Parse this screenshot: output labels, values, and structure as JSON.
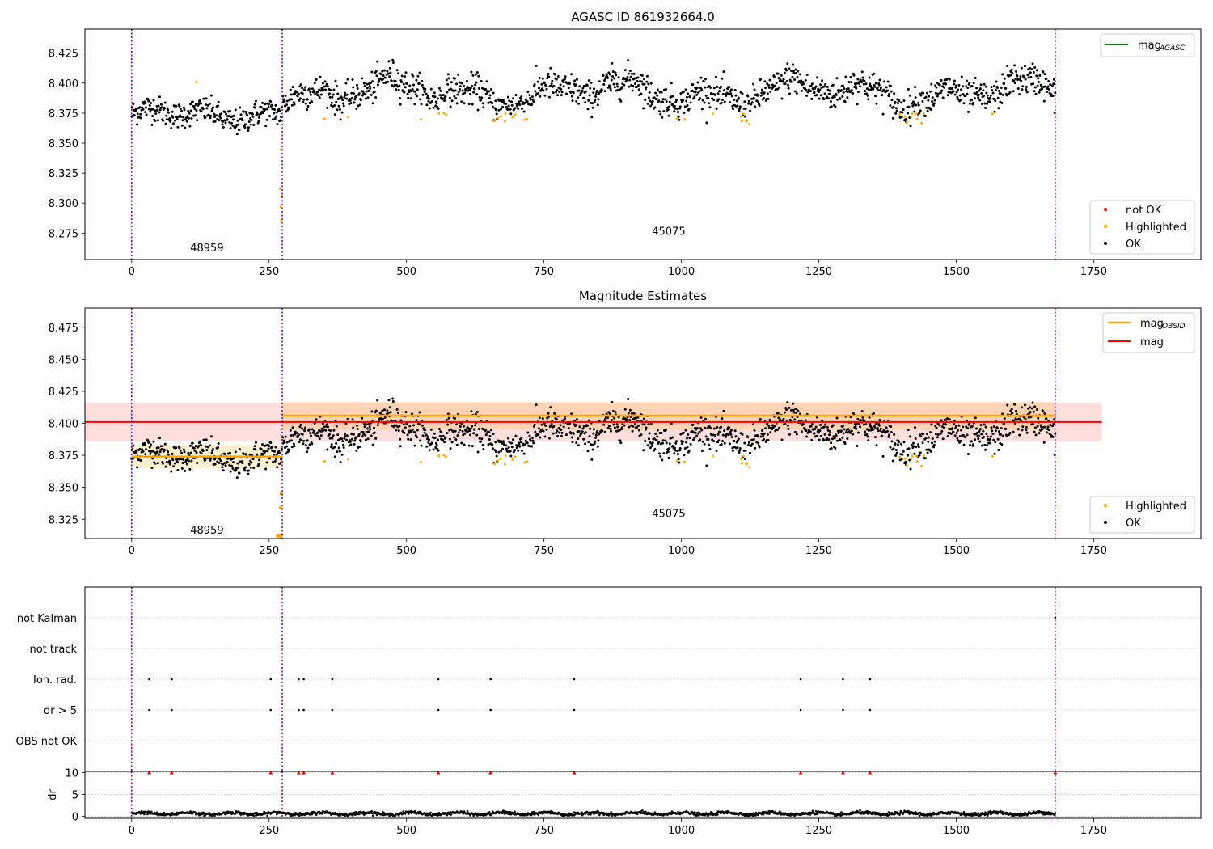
{
  "colors": {
    "ok": "#000000",
    "highlighted": "#ffa500",
    "not_ok": "#ff0000",
    "mag_agasc": "#008000",
    "mag_obsid": "#ffa500",
    "mag": "#ff0000",
    "obs_boundary": "#6a0080"
  },
  "chart_data": [
    {
      "type": "scatter",
      "title": "AGASC ID 861932664.0",
      "xlim": [
        -85,
        1945
      ],
      "ylim": [
        8.253,
        8.445
      ],
      "xticks": [
        0,
        250,
        500,
        750,
        1000,
        1250,
        1500,
        1750
      ],
      "yticks": [
        8.275,
        8.3,
        8.325,
        8.35,
        8.375,
        8.4,
        8.425
      ],
      "obs_boundaries": [
        0,
        274,
        1680
      ],
      "obsids": [
        {
          "label": "48959",
          "x": 137,
          "y": 8.263
        },
        {
          "label": "45075",
          "x": 977,
          "y": 8.277
        }
      ],
      "segments": [
        {
          "x_start": 0,
          "x_end": 273,
          "center": 8.374,
          "spread": 0.008,
          "trend": 0.003
        },
        {
          "x_start": 275,
          "x_end": 1680,
          "center": 8.392,
          "spread": 0.01,
          "trend": 0.0
        }
      ],
      "highlighted_dips": [
        {
          "x": 272,
          "y": 8.285
        },
        {
          "x": 271,
          "y": 8.297
        },
        {
          "x": 273,
          "y": 8.306
        },
        {
          "x": 270,
          "y": 8.312
        },
        {
          "x": 272,
          "y": 8.345
        },
        {
          "x": 118,
          "y": 8.401
        }
      ],
      "legends": [
        {
          "position": "top-right",
          "entries": [
            {
              "label": "mag",
              "sub": "AGASC",
              "kind": "line",
              "color": "#008000"
            }
          ]
        },
        {
          "position": "bottom-right",
          "entries": [
            {
              "label": "not OK",
              "kind": "dot",
              "color": "#ff0000"
            },
            {
              "label": "Highlighted",
              "kind": "dot",
              "color": "#ffa500"
            },
            {
              "label": "OK",
              "kind": "dot",
              "color": "#000000"
            }
          ]
        }
      ]
    },
    {
      "type": "scatter",
      "title": "Magnitude Estimates",
      "xlim": [
        -85,
        1945
      ],
      "ylim": [
        8.31,
        8.49
      ],
      "xticks": [
        0,
        250,
        500,
        750,
        1000,
        1250,
        1500,
        1750
      ],
      "yticks": [
        8.325,
        8.35,
        8.375,
        8.4,
        8.425,
        8.45,
        8.475
      ],
      "obs_boundaries": [
        0,
        274,
        1680
      ],
      "obsids": [
        {
          "label": "48959",
          "x": 137,
          "y": 8.317
        },
        {
          "label": "45075",
          "x": 977,
          "y": 8.33
        }
      ],
      "mag": {
        "value": 8.401,
        "std": 0.015,
        "x_start": -85,
        "x_end": 1765
      },
      "mag_obsid": [
        {
          "x_start": 0,
          "x_end": 274,
          "value": 8.374,
          "std": 0.009
        },
        {
          "x_start": 274,
          "x_end": 1680,
          "value": 8.406,
          "std": 0.011
        }
      ],
      "legends": [
        {
          "position": "top-right",
          "entries": [
            {
              "label": "mag",
              "sub": "OBSID",
              "kind": "line",
              "color": "#ffa500"
            },
            {
              "label": "mag",
              "kind": "line",
              "color": "#ff0000"
            }
          ]
        },
        {
          "position": "bottom-right",
          "entries": [
            {
              "label": "Highlighted",
              "kind": "dot",
              "color": "#ffa500"
            },
            {
              "label": "OK",
              "kind": "dot",
              "color": "#000000"
            }
          ]
        }
      ]
    },
    {
      "type": "scatter",
      "title": "",
      "xlim": [
        -85,
        1945
      ],
      "categories": [
        "not Kalman",
        "not track",
        "Ion. rad.",
        "dr > 5",
        "OBS not OK"
      ],
      "flags": {
        "not Kalman": [
          1680
        ],
        "not track": [],
        "Ion. rad.": [
          32,
          73,
          253,
          304,
          313,
          365,
          558,
          653,
          805,
          1217,
          1294,
          1343
        ],
        "dr > 5": [
          32,
          73,
          253,
          304,
          313,
          365,
          558,
          653,
          805,
          1217,
          1294,
          1343
        ],
        "OBS not OK": []
      },
      "obs_boundaries": [
        0,
        274,
        1680
      ]
    },
    {
      "type": "scatter",
      "title": "",
      "ylabel": "dr",
      "xlim": [
        -85,
        1945
      ],
      "ylim": [
        -0.5,
        10.3
      ],
      "xticks": [
        0,
        250,
        500,
        750,
        1000,
        1250,
        1500,
        1750
      ],
      "yticks": [
        0,
        5,
        10
      ],
      "clipped_at": 10,
      "clipped_x": [
        32,
        73,
        253,
        304,
        313,
        365,
        558,
        653,
        805,
        1217,
        1294,
        1343,
        1680
      ],
      "baseline": {
        "x_start": 0,
        "x_end": 1680,
        "typical": 0.6
      },
      "obs_boundaries": [
        0,
        274,
        1680
      ]
    }
  ]
}
